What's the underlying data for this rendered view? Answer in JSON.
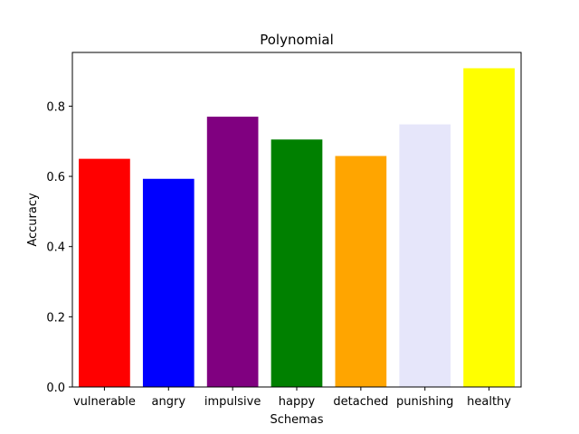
{
  "chart_data": {
    "type": "bar",
    "title": "Polynomial",
    "xlabel": "Schemas",
    "ylabel": "Accuracy",
    "categories": [
      "vulnerable",
      "angry",
      "impulsive",
      "happy",
      "detached",
      "punishing",
      "healthy"
    ],
    "values": [
      0.65,
      0.593,
      0.77,
      0.705,
      0.658,
      0.748,
      0.908
    ],
    "colors": [
      "#ff0000",
      "#0000ff",
      "#800080",
      "#008000",
      "#ffa500",
      "#e6e6fa",
      "#ffff00"
    ],
    "ylim": [
      0,
      0.953
    ],
    "yticks": [
      0.0,
      0.2,
      0.4,
      0.6,
      0.8
    ],
    "ytick_labels": [
      "0.0",
      "0.2",
      "0.4",
      "0.6",
      "0.8"
    ],
    "grid": false,
    "legend": "none"
  }
}
